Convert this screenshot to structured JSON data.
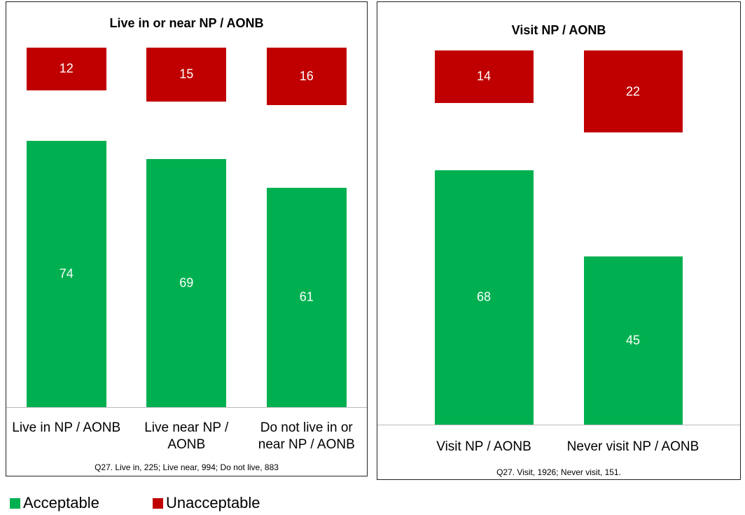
{
  "chart_data": [
    {
      "type": "bar",
      "title": "Live in or near NP / AONB",
      "categories": [
        "Live in NP / AONB",
        "Live near  NP / AONB",
        "Do not live in or near NP / AONB"
      ],
      "series": [
        {
          "name": "Acceptable",
          "color": "#00b050",
          "values": [
            74,
            69,
            61
          ]
        },
        {
          "name": "Unacceptable",
          "color": "#c00000",
          "values": [
            12,
            15,
            16
          ]
        }
      ],
      "ylim": [
        0,
        100
      ],
      "note": "Q27. Live in, 225; Live near, 994; Do not live, 883"
    },
    {
      "type": "bar",
      "title": "Visit NP / AONB",
      "categories": [
        "Visit NP / AONB",
        "Never visit NP / AONB"
      ],
      "series": [
        {
          "color": "#00b050",
          "values": [
            68,
            45
          ]
        },
        {
          "color": "#c00000",
          "values": [
            14,
            22
          ]
        }
      ],
      "ylim": [
        0,
        100
      ],
      "note": "Q27. Visit, 1926; Never visit, 151."
    }
  ]
}
